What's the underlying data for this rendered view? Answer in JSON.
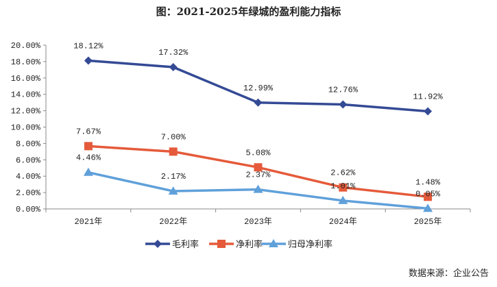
{
  "chart_data": {
    "type": "line",
    "title": "图：2021-2025年绿城的盈利能力指标",
    "categories": [
      "2021年",
      "2022年",
      "2023年",
      "2024年",
      "2025年"
    ],
    "ylim": [
      0,
      20
    ],
    "yticks": [
      "0.00%",
      "2.00%",
      "4.00%",
      "6.00%",
      "8.00%",
      "10.00%",
      "12.00%",
      "14.00%",
      "16.00%",
      "18.00%",
      "20.00%"
    ],
    "grid": false,
    "legend": "bottom",
    "series": [
      {
        "name": "毛利率",
        "values": [
          18.12,
          17.32,
          12.99,
          12.76,
          11.92
        ],
        "labels": [
          "18.12%",
          "17.32%",
          "12.99%",
          "12.76%",
          "11.92%"
        ],
        "color": "#344a95",
        "marker": "diamond"
      },
      {
        "name": "净利率",
        "values": [
          7.67,
          7.0,
          5.08,
          2.62,
          1.48
        ],
        "labels": [
          "7.67%",
          "7.00%",
          "5.08%",
          "2.62%",
          "1.48%"
        ],
        "color": "#e55a3a",
        "marker": "square"
      },
      {
        "name": "归母净利率",
        "values": [
          4.46,
          2.17,
          2.37,
          1.01,
          0.05
        ],
        "labels": [
          "4.46%",
          "2.17%",
          "2.37%",
          "1.01%",
          "0.05%"
        ],
        "color": "#5fa0da",
        "marker": "triangle"
      }
    ]
  },
  "source": "数据来源：企业公告"
}
